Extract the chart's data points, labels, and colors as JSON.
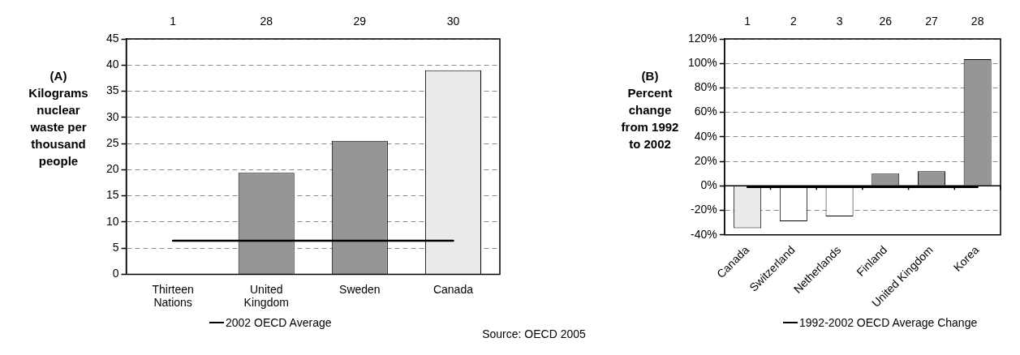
{
  "chart_data": [
    {
      "type": "bar",
      "ylabel": "(A) Kilograms nuclear waste per thousand people",
      "categories": [
        "Thirteen Nations",
        "United Kingdom",
        "Sweden",
        "Canada"
      ],
      "values": [
        0,
        19.4,
        25.5,
        39
      ],
      "colors": [
        "#969696",
        "#969696",
        "#969696",
        "#ebebeb"
      ],
      "ylim": [
        0,
        45
      ],
      "yticks": [
        0,
        5,
        10,
        15,
        20,
        25,
        30,
        35,
        40,
        45
      ],
      "grid": "y",
      "ref_lines": [
        {
          "axis": "y",
          "value": 6.4,
          "label": "2002 OECD Average",
          "color": "#000000"
        }
      ],
      "annotations": [
        "1",
        "28",
        "29",
        "30",
        "Source: OECD 2005"
      ]
    },
    {
      "type": "bar",
      "ylabel": "(B) Percent change from 1992 to 2002",
      "categories": [
        "Canada",
        "Switzerland",
        "Netherlands",
        "Finland",
        "United Kingdom",
        "Korea"
      ],
      "values": [
        -34.5,
        -29,
        -25,
        10,
        12,
        103.5
      ],
      "colors": [
        "#ebebeb",
        "#ffffff",
        "#ffffff",
        "#969696",
        "#969696",
        "#969696"
      ],
      "ylim": [
        -40,
        120
      ],
      "yticks": [
        {
          "value": -40,
          "label": "-40%"
        },
        {
          "value": -20,
          "label": "-20%"
        },
        {
          "value": 0,
          "label": "0%"
        },
        {
          "value": 20,
          "label": "20%"
        },
        {
          "value": 40,
          "label": "40%"
        },
        {
          "value": 60,
          "label": "60%"
        },
        {
          "value": 80,
          "label": "80%"
        },
        {
          "value": 100,
          "label": "100%"
        },
        {
          "value": 120,
          "label": "120%"
        }
      ],
      "grid": "y",
      "ref_lines": [
        {
          "axis": "y",
          "value": -1,
          "label": "1992-2002 OECD Average Change",
          "color": "#000000"
        }
      ],
      "annotations": [
        "1",
        "2",
        "3",
        "26",
        "27",
        "28"
      ]
    }
  ]
}
